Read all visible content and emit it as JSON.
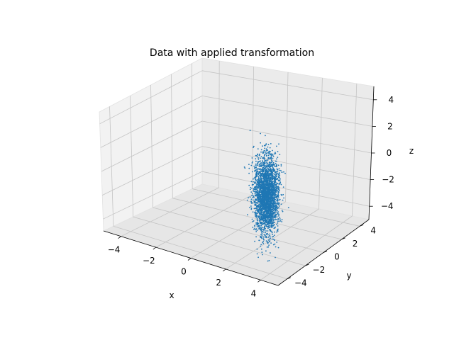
{
  "chart_data": {
    "type": "scatter",
    "projection": "3d",
    "title": "Data with applied transformation",
    "xlabel": "x",
    "ylabel": "y",
    "zlabel": "z",
    "xlim": [
      -5,
      5
    ],
    "ylim": [
      -5,
      5
    ],
    "zlim": [
      -5,
      5
    ],
    "xticks": [
      -4,
      -2,
      0,
      2,
      4
    ],
    "yticks": [
      -4,
      -2,
      0,
      2,
      4
    ],
    "zticks": [
      -4,
      -2,
      0,
      2,
      4
    ],
    "grid": true,
    "series": [
      {
        "color": "#1f77b4",
        "marker_size": 1,
        "approx_point_count": 10000,
        "distribution": {
          "x": {
            "mean": 3,
            "std": 0.3
          },
          "y": {
            "mean": -2.5,
            "std": 0.3
          },
          "z": {
            "mean": 0,
            "std": 1.5
          }
        }
      }
    ]
  }
}
